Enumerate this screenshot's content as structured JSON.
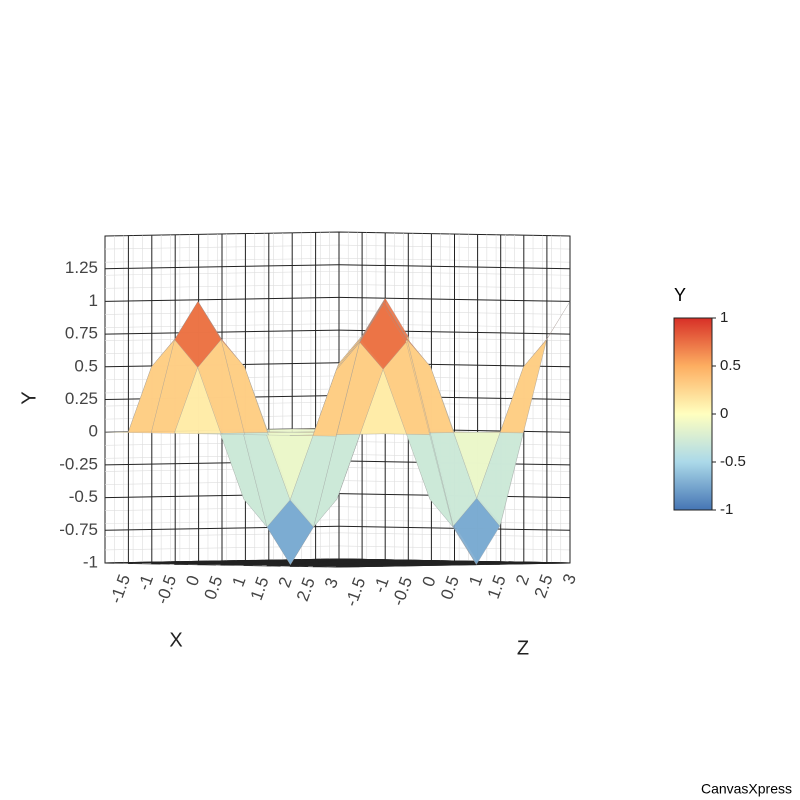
{
  "chart_data": {
    "type": "surface",
    "x_label": "X",
    "y_label": "Y",
    "z_label": "Z",
    "x": [
      -2,
      -1.5,
      -1,
      -0.5,
      0,
      0.5,
      1,
      1.5,
      2,
      2.5,
      3
    ],
    "z": [
      -2,
      -1.5,
      -1,
      -0.5,
      0,
      0.5,
      1,
      1.5,
      2,
      2.5,
      3
    ],
    "values": [
      [
        0,
        0,
        0,
        0,
        0,
        0,
        0,
        0,
        0,
        0,
        0
      ],
      [
        0,
        0.5,
        0.71,
        0.5,
        0,
        -0.5,
        -0.71,
        -0.5,
        0,
        0.5,
        0.71
      ],
      [
        0,
        0.71,
        1,
        0.71,
        0,
        -0.71,
        -1,
        -0.71,
        0,
        0.71,
        1
      ],
      [
        0,
        0.5,
        0.71,
        0.5,
        0,
        -0.5,
        -0.71,
        -0.5,
        0,
        0.5,
        0.71
      ],
      [
        0,
        0,
        0,
        0,
        0,
        0,
        0,
        0,
        0,
        0,
        0
      ],
      [
        0,
        -0.5,
        -0.71,
        -0.5,
        0,
        0.5,
        0.71,
        0.5,
        0,
        -0.5,
        -0.71
      ],
      [
        0,
        -0.71,
        -1,
        -0.71,
        0,
        0.71,
        1,
        0.71,
        0,
        -0.71,
        -1
      ],
      [
        0,
        -0.5,
        -0.71,
        -0.5,
        0,
        0.5,
        0.71,
        0.5,
        0,
        -0.5,
        -0.71
      ],
      [
        0,
        0,
        0,
        0,
        0,
        0,
        0,
        0,
        0,
        0,
        0
      ],
      [
        0,
        0.5,
        0.71,
        0.5,
        0,
        -0.5,
        -0.71,
        -0.5,
        0,
        0.5,
        0.71
      ],
      [
        0,
        0.71,
        1,
        0.71,
        0,
        -0.71,
        -1,
        -0.71,
        0,
        0.71,
        1
      ]
    ],
    "xlim": [
      -2,
      3
    ],
    "xticks": [
      -1.5,
      -1,
      -0.5,
      0,
      0.5,
      1,
      1.5,
      2,
      2.5,
      3
    ],
    "zlim": [
      -2,
      3
    ],
    "zticks": [
      -1.5,
      -1,
      -0.5,
      0,
      0.5,
      1,
      1.5,
      2,
      2.5,
      3
    ],
    "ylim": [
      -1,
      1.5
    ],
    "yticks": [
      -1,
      -0.75,
      -0.5,
      -0.25,
      0,
      0.25,
      0.5,
      0.75,
      1,
      1.25
    ],
    "grid": true,
    "colorbar": {
      "title": "Y",
      "lim": [
        -1,
        1
      ],
      "ticks": [
        -1,
        -0.5,
        0,
        0.5,
        1
      ],
      "colors": [
        "#4575b4",
        "#abd9e9",
        "#ffffbf",
        "#fdae61",
        "#d73027"
      ]
    },
    "credit": "CanvasXpress"
  }
}
